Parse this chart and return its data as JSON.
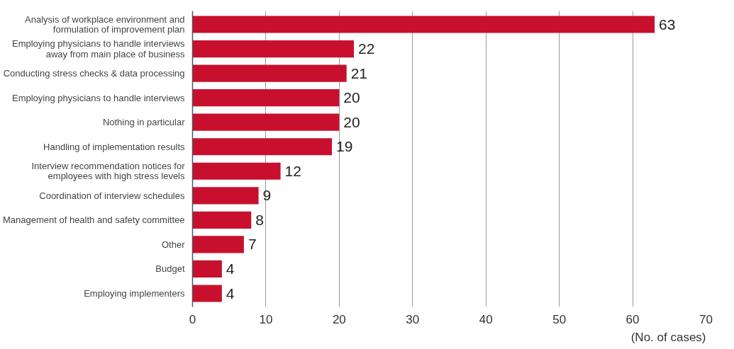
{
  "chart_data": {
    "type": "bar",
    "orientation": "horizontal",
    "categories": [
      "Analysis of workplace environment and formulation of improvement plan",
      "Employing physicians to handle interviews away from main place of business",
      "Conducting stress checks & data processing",
      "Employing physicians to handle interviews",
      "Nothing in particular",
      "Handling of implementation results",
      "Interview recommendation notices for employees with high stress levels",
      "Coordination of interview schedules",
      "Management of health and safety committee",
      "Other",
      "Budget",
      "Employing implementers"
    ],
    "values": [
      63,
      22,
      21,
      20,
      20,
      19,
      12,
      9,
      8,
      7,
      4,
      4
    ],
    "color": "#c8102e",
    "xlabel": "(No. of cases)",
    "xlim": [
      0,
      70
    ],
    "xticks": [
      0,
      10,
      20,
      30,
      40,
      50,
      60,
      70
    ],
    "grid": "x",
    "data_labels": true
  }
}
